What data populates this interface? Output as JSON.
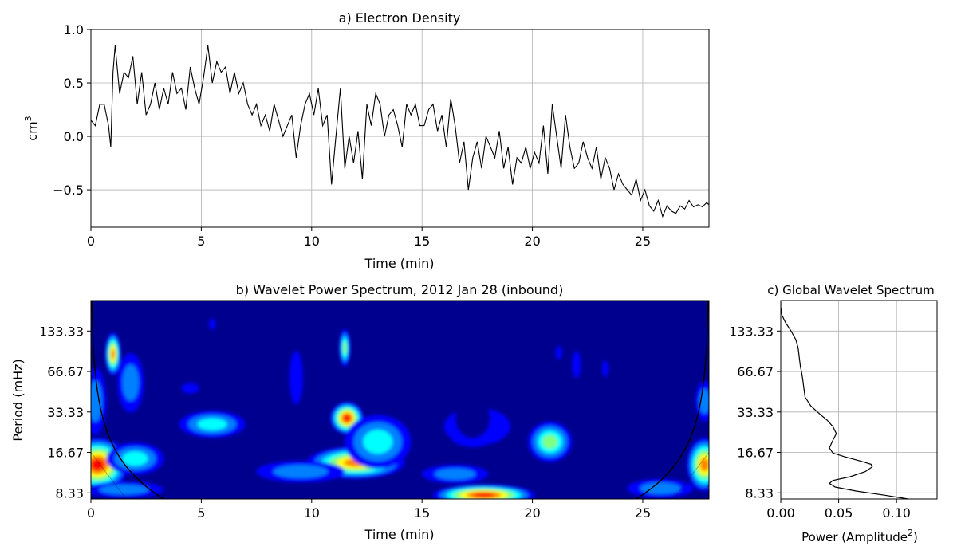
{
  "chart_data": [
    {
      "type": "line",
      "title": "a) Electron Density",
      "xlabel": "Time (min)",
      "ylabel_base": "cm",
      "ylabel_sup": "3",
      "xlim": [
        0,
        28
      ],
      "ylim": [
        -0.85,
        1.0
      ],
      "xticks": [
        0,
        5,
        10,
        15,
        20,
        25
      ],
      "xtick_labels": [
        "0",
        "5",
        "10",
        "15",
        "20",
        "25"
      ],
      "yticks": [
        -0.5,
        0.0,
        0.5,
        1.0
      ],
      "ytick_labels": [
        "−0.5",
        "0.0",
        "0.5",
        "1.0"
      ],
      "grid": true,
      "line_color": "#000000",
      "series": [
        {
          "x": [
            0,
            0.2,
            0.4,
            0.6,
            0.8,
            0.9,
            1.0,
            1.1,
            1.3,
            1.5,
            1.7,
            1.9,
            2.1,
            2.3,
            2.5,
            2.7,
            2.9,
            3.1,
            3.3,
            3.5,
            3.7,
            3.9,
            4.1,
            4.3,
            4.5,
            4.7,
            4.9,
            5.1,
            5.3,
            5.5,
            5.7,
            5.9,
            6.1,
            6.3,
            6.5,
            6.7,
            6.9,
            7.1,
            7.3,
            7.5,
            7.7,
            7.9,
            8.1,
            8.3,
            8.5,
            8.7,
            8.9,
            9.1,
            9.3,
            9.5,
            9.7,
            9.9,
            10.1,
            10.3,
            10.5,
            10.7,
            10.9,
            11.1,
            11.3,
            11.5,
            11.7,
            11.9,
            12.1,
            12.3,
            12.5,
            12.7,
            12.9,
            13.1,
            13.3,
            13.5,
            13.7,
            13.9,
            14.1,
            14.3,
            14.5,
            14.7,
            14.9,
            15.1,
            15.3,
            15.5,
            15.7,
            15.9,
            16.1,
            16.3,
            16.5,
            16.7,
            16.9,
            17.1,
            17.3,
            17.5,
            17.7,
            17.9,
            18.1,
            18.3,
            18.5,
            18.7,
            18.9,
            19.1,
            19.3,
            19.5,
            19.7,
            19.9,
            20.1,
            20.3,
            20.5,
            20.7,
            20.9,
            21.1,
            21.3,
            21.5,
            21.7,
            21.9,
            22.1,
            22.3,
            22.5,
            22.7,
            22.9,
            23.1,
            23.3,
            23.5,
            23.7,
            23.9,
            24.1,
            24.3,
            24.5,
            24.7,
            24.9,
            25.1,
            25.3,
            25.5,
            25.7,
            25.9,
            26.1,
            26.3,
            26.5,
            26.7,
            26.9,
            27.1,
            27.3,
            27.5,
            27.7,
            27.9,
            28.0
          ],
          "y": [
            0.15,
            0.1,
            0.3,
            0.3,
            0.1,
            -0.1,
            0.6,
            0.85,
            0.4,
            0.6,
            0.55,
            0.75,
            0.3,
            0.6,
            0.2,
            0.3,
            0.5,
            0.25,
            0.45,
            0.3,
            0.6,
            0.4,
            0.45,
            0.25,
            0.65,
            0.45,
            0.3,
            0.55,
            0.85,
            0.5,
            0.7,
            0.6,
            0.65,
            0.4,
            0.6,
            0.4,
            0.5,
            0.3,
            0.2,
            0.3,
            0.1,
            0.2,
            0.05,
            0.3,
            0.15,
            0.0,
            0.1,
            0.2,
            -0.2,
            0.1,
            0.3,
            0.4,
            0.2,
            0.45,
            0.1,
            0.2,
            -0.45,
            0.0,
            0.45,
            -0.3,
            0.0,
            -0.25,
            0.05,
            -0.4,
            0.3,
            0.1,
            0.4,
            0.3,
            0.0,
            0.2,
            0.25,
            0.1,
            -0.1,
            0.3,
            0.2,
            0.3,
            0.1,
            0.1,
            0.25,
            0.3,
            0.05,
            0.2,
            -0.1,
            0.35,
            0.1,
            -0.25,
            -0.05,
            -0.5,
            -0.2,
            -0.05,
            -0.3,
            0.0,
            -0.1,
            -0.2,
            0.05,
            -0.3,
            -0.1,
            -0.45,
            -0.2,
            -0.25,
            -0.1,
            -0.3,
            -0.15,
            -0.25,
            0.1,
            -0.35,
            0.3,
            0.0,
            -0.3,
            0.2,
            -0.1,
            -0.3,
            -0.25,
            -0.05,
            -0.2,
            -0.3,
            -0.1,
            -0.4,
            -0.2,
            -0.3,
            -0.5,
            -0.35,
            -0.45,
            -0.5,
            -0.55,
            -0.4,
            -0.6,
            -0.5,
            -0.65,
            -0.7,
            -0.6,
            -0.75,
            -0.65,
            -0.7,
            -0.72,
            -0.65,
            -0.68,
            -0.6,
            -0.66,
            -0.64,
            -0.66,
            -0.62,
            -0.64
          ]
        }
      ]
    },
    {
      "type": "heatmap",
      "title": "b) Wavelet Power Spectrum, 2012 Jan 28 (inbound)",
      "xlabel": "Time (min)",
      "ylabel": "Period (mHz)",
      "xlim": [
        0,
        28
      ],
      "xticks": [
        0,
        5,
        10,
        15,
        20,
        25
      ],
      "xtick_labels": [
        "0",
        "5",
        "10",
        "15",
        "20",
        "25"
      ],
      "ylim_log": [
        7.5,
        225
      ],
      "yscale": "log",
      "yticks": [
        8.33,
        16.67,
        33.33,
        66.67,
        133.33
      ],
      "ytick_labels": [
        "8.33",
        "16.67",
        "33.33",
        "66.67",
        "133.33"
      ],
      "colormap": "jet",
      "colors": [
        "#00008f",
        "#0000ff",
        "#0080ff",
        "#00ffff",
        "#80ff80",
        "#ffff00",
        "#ff8000",
        "#ff0000",
        "#800000"
      ],
      "background_color": "#00008f",
      "blobs": [
        {
          "x": 0.3,
          "period": 13.5,
          "dx": 1.4,
          "dlog": 0.2,
          "level": 7
        },
        {
          "x": 0.2,
          "period": 40.0,
          "dx": 0.5,
          "dlog": 0.25,
          "level": 2
        },
        {
          "x": 1.0,
          "period": 90.0,
          "dx": 0.35,
          "dlog": 0.16,
          "level": 6
        },
        {
          "x": 1.8,
          "period": 55.0,
          "dx": 0.6,
          "dlog": 0.22,
          "level": 2
        },
        {
          "x": 1.5,
          "period": 8.8,
          "dx": 1.8,
          "dlog": 0.06,
          "level": 2
        },
        {
          "x": 2.0,
          "period": 15.0,
          "dx": 1.3,
          "dlog": 0.12,
          "level": 3
        },
        {
          "x": 5.5,
          "period": 27.0,
          "dx": 1.5,
          "dlog": 0.1,
          "level": 3
        },
        {
          "x": 11.6,
          "period": 30.0,
          "dx": 0.75,
          "dlog": 0.12,
          "level": 7
        },
        {
          "x": 11.5,
          "period": 100.0,
          "dx": 0.25,
          "dlog": 0.14,
          "level": 4
        },
        {
          "x": 12.0,
          "period": 14.0,
          "dx": 2.2,
          "dlog": 0.12,
          "level": 6
        },
        {
          "x": 9.5,
          "period": 12.0,
          "dx": 2.0,
          "dlog": 0.08,
          "level": 2
        },
        {
          "x": 13.0,
          "period": 20.0,
          "dx": 1.5,
          "dlog": 0.2,
          "level": 3
        },
        {
          "x": 17.8,
          "period": 8.0,
          "dx": 2.3,
          "dlog": 0.08,
          "level": 7
        },
        {
          "x": 16.5,
          "period": 11.5,
          "dx": 1.5,
          "dlog": 0.07,
          "level": 2
        },
        {
          "x": 17.3,
          "period": 22.0,
          "dx": 1.0,
          "dlog": 0.08,
          "level": 2
        },
        {
          "x": 17.5,
          "period": 26.0,
          "dx": 1.5,
          "dlog": 0.14,
          "level": 1
        },
        {
          "x": 20.8,
          "period": 20.0,
          "dx": 1.0,
          "dlog": 0.15,
          "level": 4
        },
        {
          "x": 17.3,
          "period": 30.0,
          "dx": 0.8,
          "dlog": 0.15,
          "level": 0
        },
        {
          "x": 27.8,
          "period": 13.5,
          "dx": 0.8,
          "dlog": 0.2,
          "level": 6
        },
        {
          "x": 27.8,
          "period": 40.0,
          "dx": 0.4,
          "dlog": 0.15,
          "level": 2
        },
        {
          "x": 25.8,
          "period": 9.0,
          "dx": 1.5,
          "dlog": 0.07,
          "level": 2
        },
        {
          "x": 9.3,
          "period": 60.0,
          "dx": 0.3,
          "dlog": 0.2,
          "level": 1
        },
        {
          "x": 22.0,
          "period": 75.0,
          "dx": 0.2,
          "dlog": 0.1,
          "level": 1
        },
        {
          "x": 23.3,
          "period": 70.0,
          "dx": 0.15,
          "dlog": 0.06,
          "level": 1
        },
        {
          "x": 4.5,
          "period": 50.0,
          "dx": 0.4,
          "dlog": 0.04,
          "level": 1
        },
        {
          "x": 5.5,
          "period": 150.0,
          "dx": 0.15,
          "dlog": 0.04,
          "level": 1
        },
        {
          "x": 21.2,
          "period": 92.0,
          "dx": 0.15,
          "dlog": 0.05,
          "level": 1
        },
        {
          "x": 19.0,
          "period": 14.0,
          "dx": 0.6,
          "dlog": 0.05,
          "level": 0
        }
      ],
      "cone_of_influence": true
    },
    {
      "type": "line",
      "title": "c) Global Wavelet Spectrum",
      "xlabel_base": "Power (Amplitude",
      "xlabel_sup": "2",
      "xlabel_end": ")",
      "xlim": [
        0,
        0.135
      ],
      "xticks": [
        0.0,
        0.05,
        0.1
      ],
      "xtick_labels": [
        "0.00",
        "0.05",
        "0.10"
      ],
      "ylim_log": [
        7.5,
        225
      ],
      "yscale": "log",
      "yticks": [
        8.33,
        16.67,
        33.33,
        66.67,
        133.33
      ],
      "ytick_labels": [
        "8.33",
        "16.67",
        "33.33",
        "66.67",
        "133.33"
      ],
      "grid": true,
      "series": [
        {
          "period": [
            7.5,
            8.0,
            8.6,
            9.2,
            9.8,
            10.3,
            11.0,
            12.0,
            13.0,
            13.6,
            14.3,
            15.5,
            16.5,
            18.0,
            20.5,
            23.0,
            26.0,
            29.0,
            32.0,
            37.0,
            43.0,
            50.0,
            58.0,
            66.0,
            72.0,
            85.0,
            100.0,
            115.0,
            133.0,
            155.0,
            175.0,
            200.0,
            225.0
          ],
          "power": [
            0.11,
            0.09,
            0.065,
            0.047,
            0.042,
            0.045,
            0.06,
            0.073,
            0.079,
            0.078,
            0.07,
            0.055,
            0.045,
            0.042,
            0.045,
            0.048,
            0.045,
            0.04,
            0.034,
            0.026,
            0.021,
            0.02,
            0.019,
            0.018,
            0.017,
            0.016,
            0.015,
            0.013,
            0.009,
            0.004,
            0.001,
            0.0,
            0.0
          ]
        }
      ]
    }
  ]
}
